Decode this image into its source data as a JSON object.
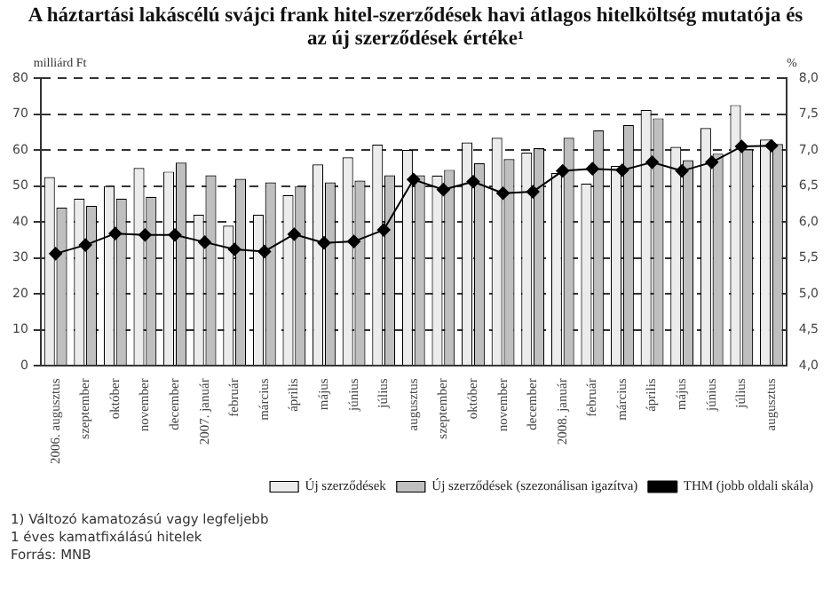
{
  "chart_data": {
    "type": "bar",
    "title": "A háztartási lakáscélú svájci frank hitel-szerződések havi átlagos hitelköltség mutatója és az új szerződések értéke¹",
    "ylabel": "milliárd Ft",
    "y2label": "%",
    "categories": [
      "2006. augusztus",
      "szeptember",
      "október",
      "november",
      "december",
      "2007. január",
      "február",
      "március",
      "április",
      "május",
      "június",
      "július",
      "augusztus",
      "szeptember",
      "október",
      "november",
      "december",
      "2008. január",
      "február",
      "március",
      "április",
      "május",
      "június",
      "július",
      "augusztus"
    ],
    "series": [
      {
        "name": "Új szerződések",
        "color": "#ececec",
        "values": [
          52.5,
          46.5,
          50,
          55,
          54,
          42,
          39,
          42,
          47.5,
          56,
          58,
          61.5,
          60,
          52.9,
          62.1,
          63.4,
          59.3,
          53.6,
          50.7,
          55.6,
          71.2,
          60.9,
          66.1,
          72.5,
          62.9
        ]
      },
      {
        "name": "Új szerződések (szezonálisan igazítva)",
        "color": "#bfbfbf",
        "values": [
          44,
          44.5,
          46.5,
          47,
          56.5,
          53,
          52,
          51,
          50,
          51,
          51.5,
          53,
          53,
          54.5,
          56.3,
          57.5,
          60.5,
          63.4,
          65.5,
          66.9,
          68.8,
          57.2,
          59,
          60.2,
          61.7
        ]
      },
      {
        "name": "THM (jobb oldali skála)",
        "type": "line",
        "axis": "y2",
        "color": "#000000",
        "values": [
          5.56,
          5.68,
          5.84,
          5.82,
          5.82,
          5.72,
          5.62,
          5.59,
          5.83,
          5.71,
          5.73,
          5.89,
          6.59,
          6.45,
          6.56,
          6.4,
          6.42,
          6.71,
          6.74,
          6.72,
          6.83,
          6.71,
          6.83,
          7.05,
          7.06
        ]
      }
    ],
    "ylim": [
      0,
      80
    ],
    "yticks": [
      0,
      10,
      20,
      30,
      40,
      50,
      60,
      70,
      80
    ],
    "y2lim": [
      4,
      8
    ],
    "y2ticks": [
      {
        "value": 4,
        "label": "4,0"
      },
      {
        "value": 4.5,
        "label": "4,5"
      },
      {
        "value": 5,
        "label": "5,0"
      },
      {
        "value": 5.5,
        "label": "5,5"
      },
      {
        "value": 6,
        "label": "6,0"
      },
      {
        "value": 6.5,
        "label": "6,5"
      },
      {
        "value": 7,
        "label": "7,0"
      },
      {
        "value": 7.5,
        "label": "7,5"
      },
      {
        "value": 8,
        "label": "8,0"
      }
    ],
    "grid": "y",
    "legend": "bottom",
    "marker": "diamond",
    "line_style": "solid",
    "annotations": [
      "1) Változó kamatozású vagy legfeljebb 1 éves kamatfixálású hitelek",
      "Forrás: MNB"
    ]
  }
}
